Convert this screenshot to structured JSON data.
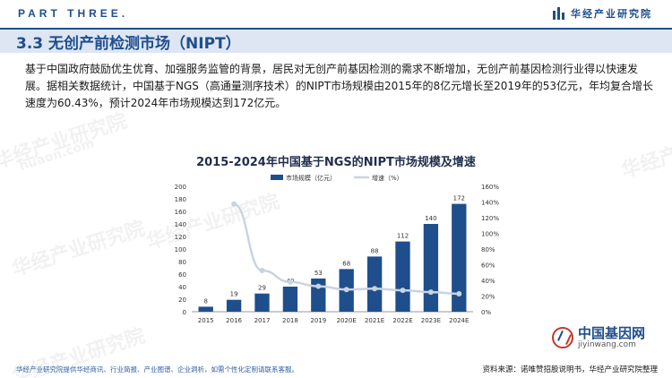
{
  "header": {
    "part_label": "PART THREE.",
    "brand": "华经产业研究院"
  },
  "section": {
    "title": "3.3 无创产前检测市场（NIPT）"
  },
  "body": {
    "paragraph": "基于中国政府鼓励优生优育、加强服务监管的背景，居民对无创产前基因检测的需求不断增加，无创产前基因检测行业得以快速发展。据相关数据统计，中国基于NGS（高通量测序技术）的NIPT市场规模由2015年的8亿元增长至2019年的53亿元，年均复合增长速度为60.43%，预计2024年市场规模达到172亿元。"
  },
  "watermarks": [
    "华经产业研究院",
    "华经产业研究院",
    "华经产业研究院",
    "华经产业研究院",
    "华经产业研究院",
    "huaon.com"
  ],
  "chart_data": {
    "type": "bar",
    "title": "2015-2024年中国基于NGS的NIPT市场规模及增速",
    "categories": [
      "2015",
      "2016",
      "2017",
      "2018",
      "2019",
      "2020E",
      "2021E",
      "2022E",
      "2023E",
      "2024E"
    ],
    "series": [
      {
        "name": "市场规模（亿元）",
        "kind": "bar",
        "axis": "left",
        "color": "#1f4e8c",
        "values": [
          8,
          19,
          29,
          40,
          53,
          68,
          88,
          112,
          140,
          172
        ]
      },
      {
        "name": "增速（%）",
        "kind": "line",
        "axis": "right",
        "color": "#c9d3e2",
        "values": [
          null,
          137.5,
          52.6,
          37.9,
          32.5,
          28.3,
          29.4,
          27.3,
          25.0,
          22.9
        ]
      }
    ],
    "left_axis": {
      "ylim": [
        0,
        200
      ],
      "ticks": [
        "0",
        "20",
        "40",
        "60",
        "80",
        "100",
        "120",
        "140",
        "160",
        "180",
        "200"
      ]
    },
    "right_axis": {
      "ylim": [
        0,
        160
      ],
      "ticks": [
        "0%",
        "20%",
        "40%",
        "60%",
        "80%",
        "100%",
        "120%",
        "140%",
        "160%"
      ]
    },
    "legend_position": "top-center",
    "grid": false
  },
  "footer": {
    "left": "华经产业研究院提供华经商讯、行业简报、产业图谱、企业洞析，如需个性化定制请联系客服。",
    "right": "资料来源：诺唯赞招股说明书，华经产业研究院整理"
  },
  "source_logo": {
    "name": "中国基因网",
    "url": "jiyinwang.com"
  }
}
